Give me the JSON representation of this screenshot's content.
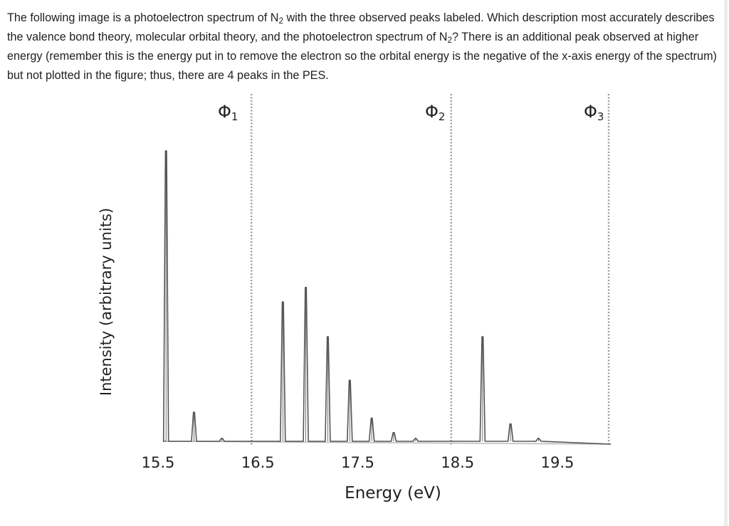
{
  "question": {
    "part1": "The following image is a photoelectron spectrum of N",
    "sub1": "2",
    "part2": " with the three observed peaks labeled. Which description most accurately describes the valence bond theory, molecular orbital theory, and the photoelectron spectrum of N",
    "sub2": "2",
    "part3": "? There is an additional peak observed at higher energy (remember this is the energy put in to remove the electron so the orbital energy is the negative of the x-axis energy of the spectrum) but not plotted in the figure; thus, there are 4 peaks in the PES."
  },
  "chart_data": {
    "type": "line",
    "xlabel": "Energy (eV)",
    "ylabel": "Intensity (arbitrary units)",
    "xlim": [
      15.5,
      19.5
    ],
    "x_ticks": [
      15.5,
      16.5,
      17.5,
      18.5,
      19.5
    ],
    "x_tick_labels": [
      "15.5",
      "16.5",
      "17.5",
      "18.5",
      "19.5"
    ],
    "y_ticks_shown": false,
    "band_dividers_x": [
      16.5,
      18.5,
      19.5
    ],
    "band_labels": [
      {
        "symbol": "Φ",
        "sub": "1",
        "x": 16.1
      },
      {
        "symbol": "Φ",
        "sub": "2",
        "x": 18.1
      },
      {
        "symbol": "Φ",
        "sub": "3",
        "x": 19.8
      }
    ],
    "baseline": 0,
    "peaks": [
      {
        "x": 15.58,
        "y": 1.0
      },
      {
        "x": 15.86,
        "y": 0.1
      },
      {
        "x": 16.14,
        "y": 0.01
      },
      {
        "x": 16.75,
        "y": 0.48
      },
      {
        "x": 16.98,
        "y": 0.53
      },
      {
        "x": 17.2,
        "y": 0.36
      },
      {
        "x": 17.42,
        "y": 0.21
      },
      {
        "x": 17.64,
        "y": 0.08
      },
      {
        "x": 17.86,
        "y": 0.03
      },
      {
        "x": 18.08,
        "y": 0.01
      },
      {
        "x": 18.75,
        "y": 0.36
      },
      {
        "x": 19.03,
        "y": 0.06
      },
      {
        "x": 19.31,
        "y": 0.01
      }
    ],
    "line_color": "#555555",
    "divider_color": "#9a9a9a",
    "grid": false
  }
}
